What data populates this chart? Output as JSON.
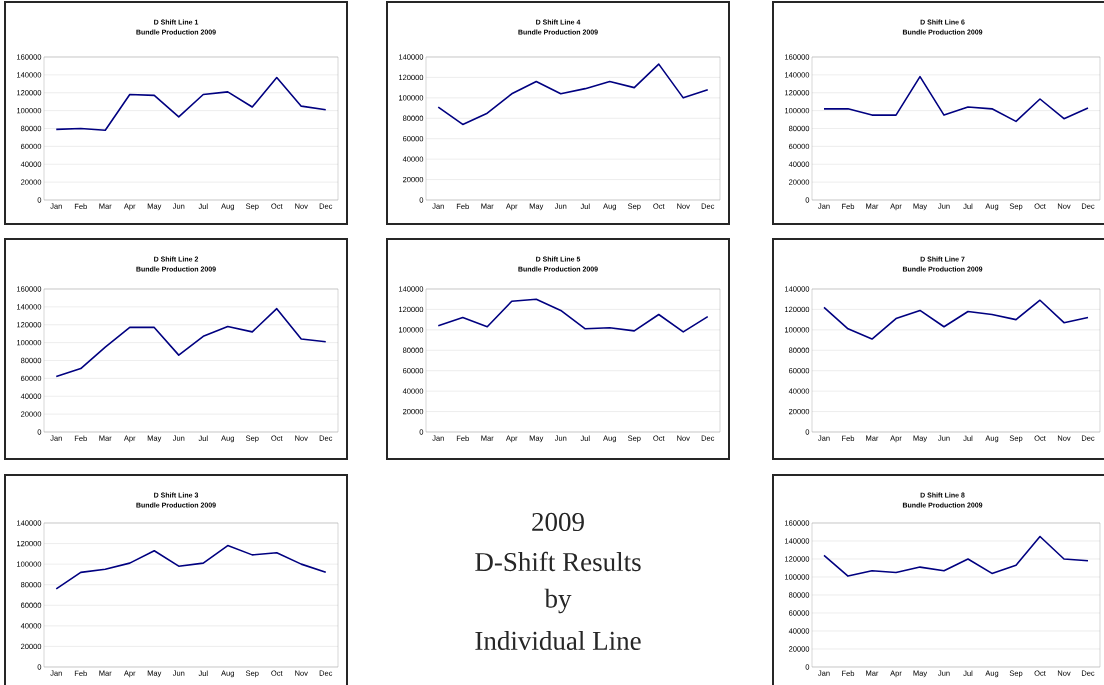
{
  "chart_data": [
    {
      "type": "line",
      "title": "D Shift Line 1",
      "subtitle": "Bundle Production 2009",
      "categories": [
        "Jan",
        "Feb",
        "Mar",
        "Apr",
        "May",
        "Jun",
        "Jul",
        "Aug",
        "Sep",
        "Oct",
        "Nov",
        "Dec"
      ],
      "values": [
        79000,
        80000,
        78000,
        118000,
        117000,
        93000,
        118000,
        121000,
        104000,
        137000,
        105000,
        101000
      ],
      "color": "#000080",
      "ylim": [
        0,
        160000
      ],
      "yticks": [
        0,
        20000,
        40000,
        60000,
        80000,
        100000,
        120000,
        140000,
        160000
      ],
      "grid": "y"
    },
    {
      "type": "line",
      "title": "D Shift Line 4",
      "subtitle": "Bundle Production 2009",
      "categories": [
        "Jan",
        "Feb",
        "Mar",
        "Apr",
        "May",
        "Jun",
        "Jul",
        "Aug",
        "Sep",
        "Oct",
        "Nov",
        "Dec"
      ],
      "values": [
        91000,
        74000,
        85000,
        104000,
        116000,
        104000,
        109000,
        116000,
        110000,
        133000,
        100000,
        108000
      ],
      "color": "#000080",
      "ylim": [
        0,
        140000
      ],
      "yticks": [
        0,
        20000,
        40000,
        60000,
        80000,
        100000,
        120000,
        140000
      ],
      "grid": "y"
    },
    {
      "type": "line",
      "title": "D Shift Line 6",
      "subtitle": "Bundle Production 2009",
      "categories": [
        "Jan",
        "Feb",
        "Mar",
        "Apr",
        "May",
        "Jun",
        "Jul",
        "Aug",
        "Sep",
        "Oct",
        "Nov",
        "Dec"
      ],
      "values": [
        102000,
        102000,
        95000,
        95000,
        138000,
        95000,
        104000,
        102000,
        88000,
        113000,
        91000,
        103000
      ],
      "color": "#000080",
      "ylim": [
        0,
        160000
      ],
      "yticks": [
        0,
        20000,
        40000,
        60000,
        80000,
        100000,
        120000,
        140000,
        160000
      ],
      "grid": "y"
    },
    {
      "type": "line",
      "title": "D Shift Line 2",
      "subtitle": "Bundle Production 2009",
      "categories": [
        "Jan",
        "Feb",
        "Mar",
        "Apr",
        "May",
        "Jun",
        "Jul",
        "Aug",
        "Sep",
        "Oct",
        "Nov",
        "Dec"
      ],
      "values": [
        62000,
        71000,
        95000,
        117000,
        117000,
        86000,
        107000,
        118000,
        112000,
        138000,
        104000,
        101000
      ],
      "color": "#000080",
      "ylim": [
        0,
        160000
      ],
      "yticks": [
        0,
        20000,
        40000,
        60000,
        80000,
        100000,
        120000,
        140000,
        160000
      ],
      "grid": "y"
    },
    {
      "type": "line",
      "title": "D Shift Line 5",
      "subtitle": "Bundle Production 2009",
      "categories": [
        "Jan",
        "Feb",
        "Mar",
        "Apr",
        "May",
        "Jun",
        "Jul",
        "Aug",
        "Sep",
        "Oct",
        "Nov",
        "Dec"
      ],
      "values": [
        104000,
        112000,
        103000,
        128000,
        130000,
        119000,
        101000,
        102000,
        99000,
        115000,
        98000,
        113000
      ],
      "color": "#000080",
      "ylim": [
        0,
        140000
      ],
      "yticks": [
        0,
        20000,
        40000,
        60000,
        80000,
        100000,
        120000,
        140000
      ],
      "grid": "y"
    },
    {
      "type": "line",
      "title": "D Shift Line 7",
      "subtitle": "Bundle Production 2009",
      "categories": [
        "Jan",
        "Feb",
        "Mar",
        "Apr",
        "May",
        "Jun",
        "Jul",
        "Aug",
        "Sep",
        "Oct",
        "Nov",
        "Dec"
      ],
      "values": [
        122000,
        101000,
        91000,
        111000,
        119000,
        103000,
        118000,
        115000,
        110000,
        129000,
        107000,
        112000
      ],
      "color": "#000080",
      "ylim": [
        0,
        140000
      ],
      "yticks": [
        0,
        20000,
        40000,
        60000,
        80000,
        100000,
        120000,
        140000
      ],
      "grid": "y"
    },
    {
      "type": "line",
      "title": "D Shift Line 3",
      "subtitle": "Bundle Production 2009",
      "categories": [
        "Jan",
        "Feb",
        "Mar",
        "Apr",
        "May",
        "Jun",
        "Jul",
        "Aug",
        "Sep",
        "Oct",
        "Nov",
        "Dec"
      ],
      "values": [
        76000,
        92000,
        95000,
        101000,
        113000,
        98000,
        101000,
        118000,
        109000,
        111000,
        100000,
        92000
      ],
      "color": "#000080",
      "ylim": [
        0,
        140000
      ],
      "yticks": [
        0,
        20000,
        40000,
        60000,
        80000,
        100000,
        120000,
        140000
      ],
      "grid": "y"
    },
    {
      "type": "other",
      "annotations": [
        "2009",
        "D-Shift Results",
        "by",
        "Individual Line"
      ]
    },
    {
      "type": "line",
      "title": "D Shift Line 8",
      "subtitle": "Bundle Production 2009",
      "categories": [
        "Jan",
        "Feb",
        "Mar",
        "Apr",
        "May",
        "Jun",
        "Jul",
        "Aug",
        "Sep",
        "Oct",
        "Nov",
        "Dec"
      ],
      "values": [
        124000,
        101000,
        107000,
        105000,
        111000,
        107000,
        120000,
        104000,
        113000,
        145000,
        120000,
        118000
      ],
      "color": "#000080",
      "ylim": [
        0,
        160000
      ],
      "yticks": [
        0,
        20000,
        40000,
        60000,
        80000,
        100000,
        120000,
        140000,
        160000
      ],
      "grid": "y"
    }
  ]
}
